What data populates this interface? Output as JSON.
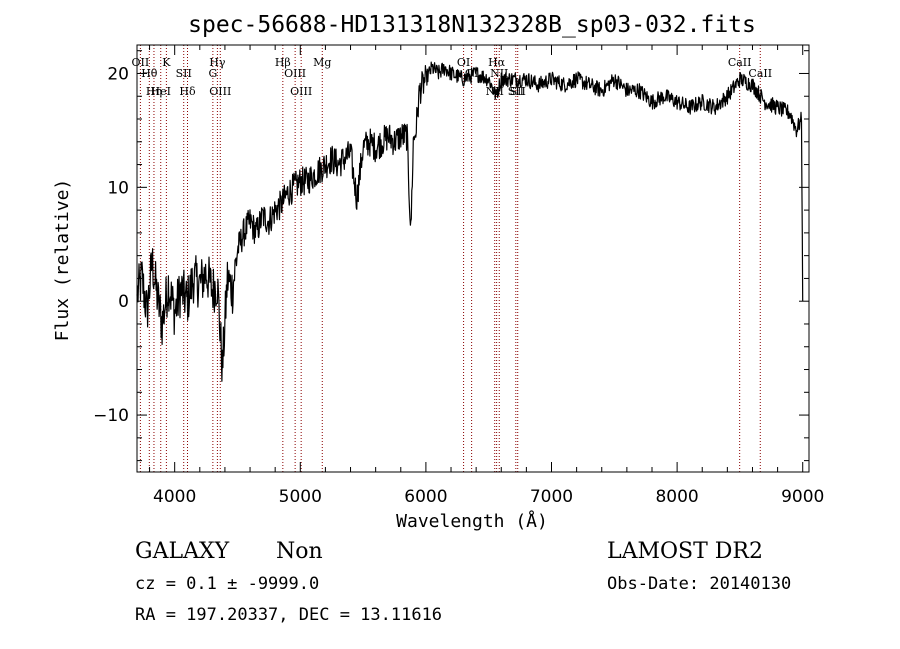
{
  "chart_data": {
    "type": "line",
    "title": "spec-56688-HD131318N132328B_sp03-032.fits",
    "xlabel": "Wavelength (Å)",
    "ylabel": "Flux (relative)",
    "xlim": [
      3700,
      9050
    ],
    "ylim": [
      -15,
      22.5
    ],
    "x_ticks": [
      4000,
      5000,
      6000,
      7000,
      8000,
      9000
    ],
    "y_ticks": [
      -10,
      0,
      10,
      20
    ],
    "grid": false,
    "line_color": "#000000",
    "marker_color": "#8b0000",
    "series": [
      {
        "x": [
          3700,
          3740,
          3780,
          3820,
          3860,
          3900,
          3950,
          4000,
          4050,
          4100,
          4150,
          4200,
          4250,
          4300,
          4340,
          4380,
          4420,
          4460,
          4500,
          4550,
          4600,
          4650,
          4700,
          4750,
          4800,
          4850,
          4900,
          4950,
          5000,
          5050,
          5100,
          5150,
          5200,
          5250,
          5300,
          5350,
          5400,
          5450,
          5500,
          5550,
          5600,
          5650,
          5700,
          5750,
          5800,
          5850,
          5880,
          5900,
          5920,
          5950,
          6000,
          6050,
          6100,
          6150,
          6200,
          6300,
          6400,
          6500,
          6560,
          6600,
          6700,
          6800,
          6900,
          7000,
          7100,
          7200,
          7300,
          7400,
          7500,
          7600,
          7700,
          7800,
          7900,
          8000,
          8100,
          8200,
          8300,
          8400,
          8500,
          8600,
          8700,
          8800,
          8900,
          8950,
          8990,
          9000
        ],
        "y": [
          0.5,
          2.0,
          -1.0,
          3.5,
          0.5,
          -2.0,
          1.5,
          -1.0,
          1.0,
          0.0,
          2.0,
          1.5,
          2.5,
          1.0,
          1.5,
          -6.0,
          2.0,
          1.0,
          4.5,
          6.0,
          7.0,
          6.0,
          7.5,
          7.0,
          8.0,
          8.5,
          9.5,
          10.0,
          10.5,
          10.5,
          11.0,
          11.5,
          12.0,
          12.5,
          12.0,
          12.5,
          13.0,
          9.0,
          13.5,
          14.0,
          13.5,
          14.0,
          14.5,
          14.0,
          14.5,
          14.5,
          6.0,
          14.0,
          15.0,
          18.5,
          19.5,
          20.5,
          20.0,
          20.5,
          20.0,
          19.5,
          20.0,
          19.5,
          18.0,
          19.5,
          19.5,
          19.5,
          19.0,
          19.5,
          19.0,
          19.5,
          19.0,
          18.5,
          19.5,
          18.5,
          18.5,
          17.5,
          18.0,
          17.5,
          17.0,
          17.5,
          17.0,
          18.0,
          19.5,
          19.0,
          17.5,
          17.0,
          16.5,
          15.0,
          16.0,
          0.0
        ]
      }
    ],
    "lines": [
      {
        "label": "OII",
        "x": 3727
      },
      {
        "label": "Hθ",
        "x": 3798
      },
      {
        "label": "Hη",
        "x": 3835
      },
      {
        "label": "K",
        "x": 3934
      },
      {
        "label": "HeI",
        "x": 3889
      },
      {
        "label": "SII",
        "x": 4072
      },
      {
        "label": "Hδ",
        "x": 4102
      },
      {
        "label": "Hγ",
        "x": 4340
      },
      {
        "label": "G",
        "x": 4304
      },
      {
        "label": "OIII",
        "x": 4363
      },
      {
        "label": "Hβ",
        "x": 4861
      },
      {
        "label": "OIII",
        "x": 4959
      },
      {
        "label": "OIII",
        "x": 5007
      },
      {
        "label": "Mg",
        "x": 5175
      },
      {
        "label": "OI",
        "x": 6300
      },
      {
        "label": "OI",
        "x": 6364
      },
      {
        "label": "Hα",
        "x": 6563
      },
      {
        "label": "NII",
        "x": 6584
      },
      {
        "label": "NII",
        "x": 6548
      },
      {
        "label": "SII",
        "x": 6716
      },
      {
        "label": "SII",
        "x": 6731
      },
      {
        "label": "CaII",
        "x": 8498
      },
      {
        "label": "CaII",
        "x": 8662
      }
    ]
  },
  "footer": {
    "class": "GALAXY",
    "subclass": "Non",
    "survey": "LAMOST DR2",
    "cz": "cz = 0.1 ± -9999.0",
    "obs_date": "Obs-Date: 20140130",
    "coords": "RA = 197.20337, DEC =  13.11616"
  }
}
